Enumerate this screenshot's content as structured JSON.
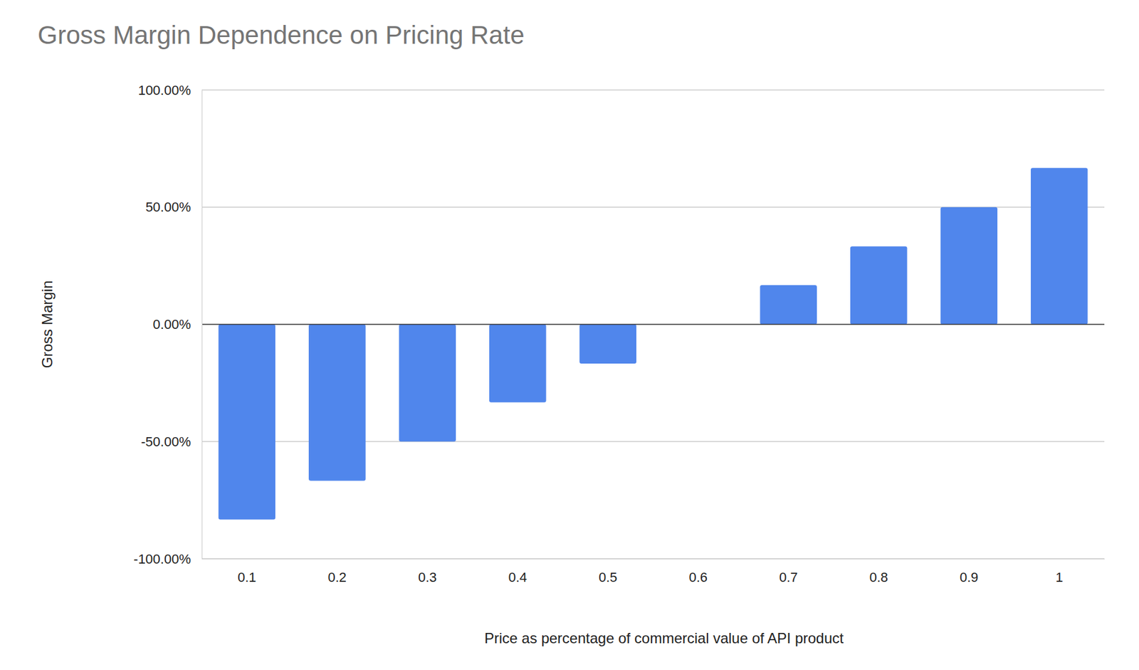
{
  "chart_data": {
    "type": "bar",
    "title": "Gross Margin Dependence on Pricing Rate",
    "x_label": "Price as percentage of commercial value of API product",
    "y_label": "Gross Margin",
    "categories": [
      "0.1",
      "0.2",
      "0.3",
      "0.4",
      "0.5",
      "0.6",
      "0.7",
      "0.8",
      "0.9",
      "1"
    ],
    "values": [
      -83.3,
      -66.7,
      -50,
      -33.3,
      -16.7,
      0,
      16.7,
      33.3,
      50,
      66.7
    ],
    "color": "#5086ec",
    "ylim": [
      -100,
      100
    ],
    "yticks": [
      {
        "value": -100,
        "label": "-100.00%"
      },
      {
        "value": -50,
        "label": "-50.00%"
      },
      {
        "value": 0,
        "label": "0.00%"
      },
      {
        "value": 50,
        "label": "50.00%"
      },
      {
        "value": 100,
        "label": "100.00%"
      }
    ],
    "grid": true
  }
}
